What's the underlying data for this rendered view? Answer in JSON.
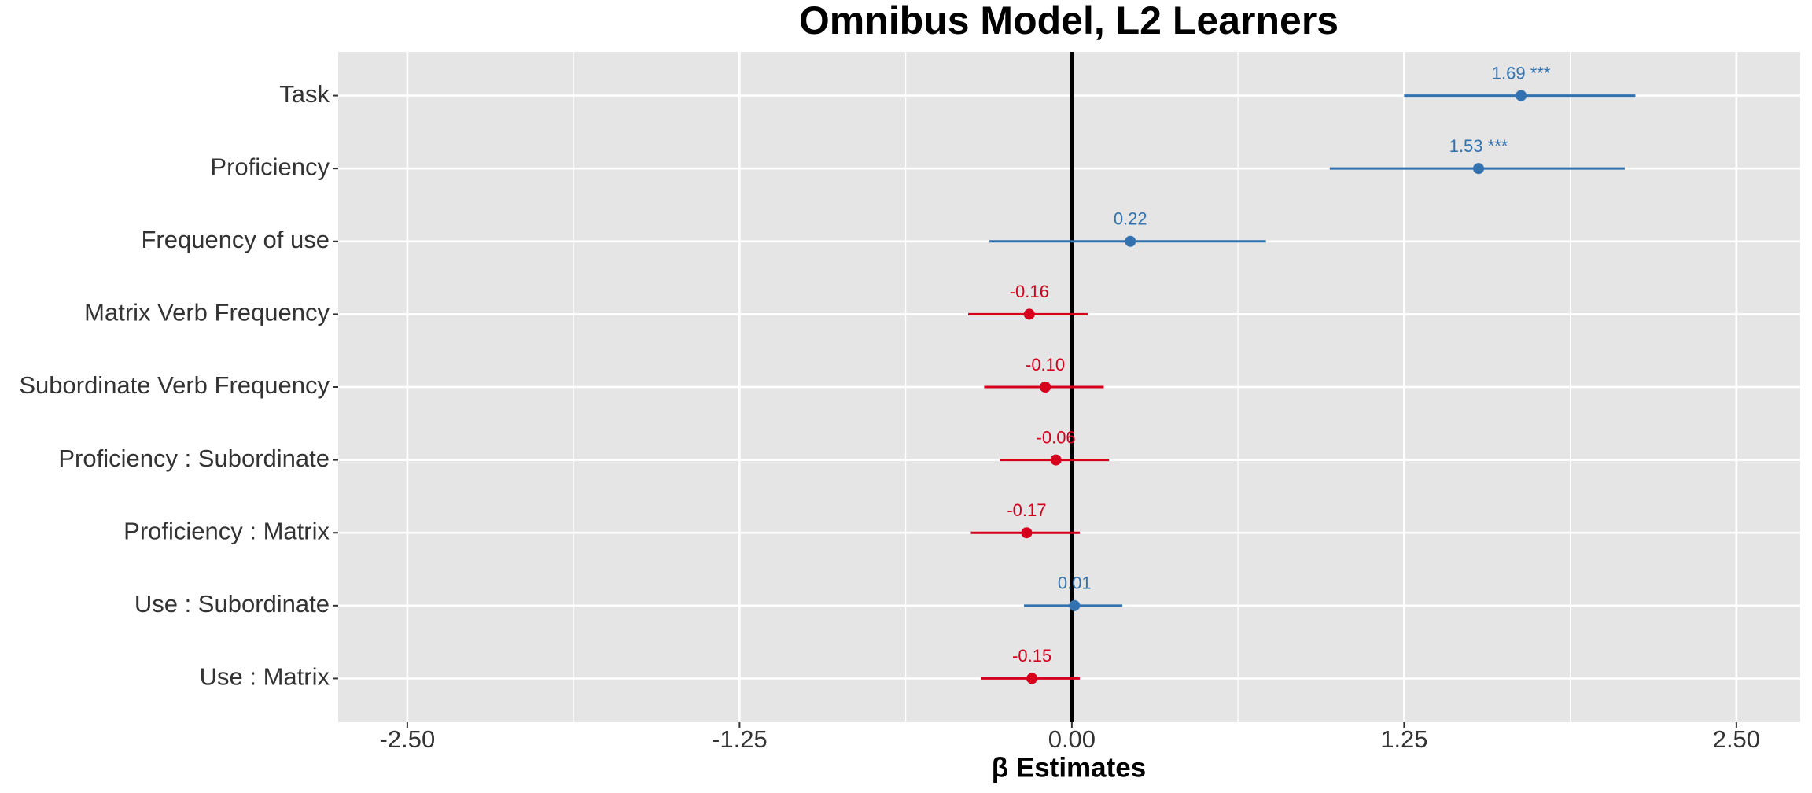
{
  "chart_data": {
    "type": "forest",
    "title": "Omnibus Model, L2 Learners",
    "x_label": "β Estimates",
    "categories": [
      "Task",
      "Proficiency",
      "Frequency of use",
      "Matrix Verb Frequency",
      "Subordinate Verb Frequency",
      "Proficiency : Subordinate",
      "Proficiency : Matrix",
      "Use : Subordinate",
      "Use : Matrix"
    ],
    "values": [
      1.69,
      1.53,
      0.22,
      -0.16,
      -0.1,
      -0.06,
      -0.17,
      0.01,
      -0.15
    ],
    "value_labels": [
      "1.69 ***",
      "1.53 ***",
      "0.22",
      "-0.16",
      "-0.10",
      "-0.06",
      "-0.17",
      "0.01",
      "-0.15"
    ],
    "ci_low": [
      1.25,
      0.97,
      -0.31,
      -0.39,
      -0.33,
      -0.27,
      -0.38,
      -0.18,
      -0.34
    ],
    "ci_high": [
      2.12,
      2.08,
      0.73,
      0.06,
      0.12,
      0.14,
      0.03,
      0.19,
      0.03
    ],
    "positive_color": "#3272b0",
    "negative_color": "#d6001c",
    "reference_line": 0,
    "xlim": [
      -2.76,
      2.74
    ],
    "xticks": [
      {
        "value": -2.5,
        "label": "-2.50"
      },
      -1.25,
      {
        "value": 0,
        "label": "0.00"
      },
      1.25,
      {
        "value": 2.5,
        "label": "2.50"
      }
    ],
    "grid": true,
    "minor_grid": true
  }
}
